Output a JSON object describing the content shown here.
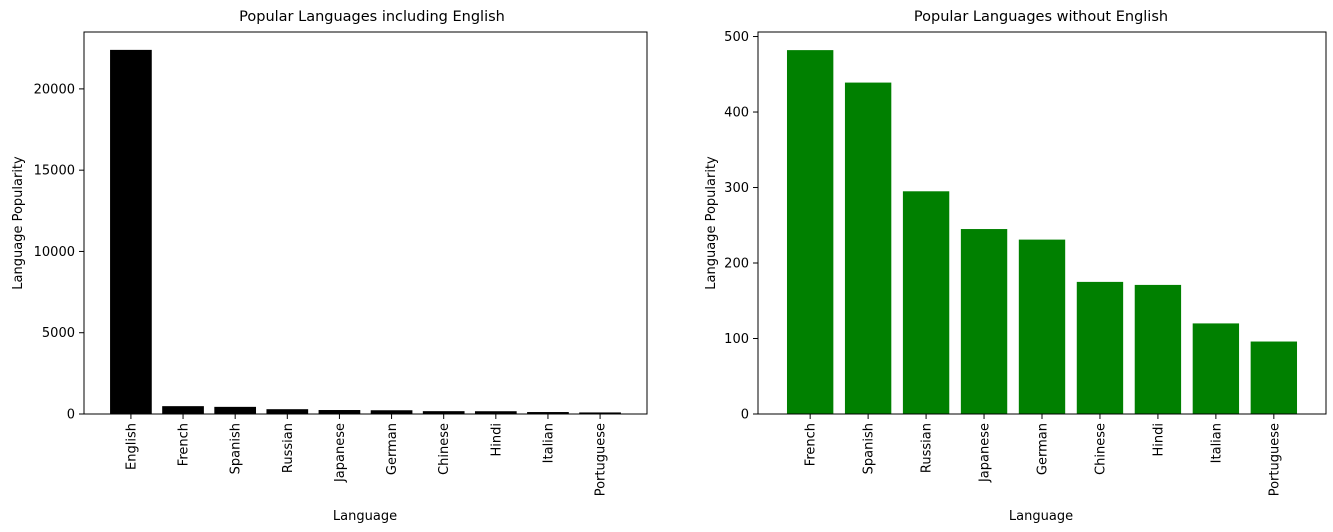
{
  "chart_data": [
    {
      "type": "bar",
      "title": "Popular Languages including English",
      "xlabel": "Language",
      "ylabel": "Language Popularity",
      "categories": [
        "English",
        "French",
        "Spanish",
        "Russian",
        "Japanese",
        "German",
        "Chinese",
        "Hindi",
        "Italian",
        "Portuguese"
      ],
      "values": [
        22400,
        482,
        439,
        295,
        245,
        231,
        175,
        171,
        120,
        96
      ],
      "ylim": [
        0,
        23500
      ],
      "yticks": [
        0,
        5000,
        10000,
        15000,
        20000
      ],
      "bar_color": "#000000",
      "grid": false
    },
    {
      "type": "bar",
      "title": "Popular Languages without English",
      "xlabel": "Language",
      "ylabel": "Language Popularity",
      "categories": [
        "French",
        "Spanish",
        "Russian",
        "Japanese",
        "German",
        "Chinese",
        "Hindi",
        "Italian",
        "Portuguese"
      ],
      "values": [
        482,
        439,
        295,
        245,
        231,
        175,
        171,
        120,
        96
      ],
      "ylim": [
        0,
        506
      ],
      "yticks": [
        0,
        100,
        200,
        300,
        400,
        500
      ],
      "bar_color": "#008000",
      "grid": false
    }
  ]
}
